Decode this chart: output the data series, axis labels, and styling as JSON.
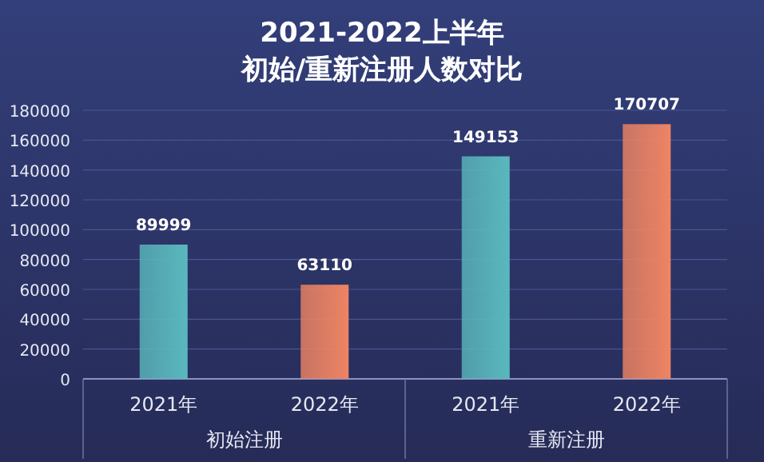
{
  "chart_data": {
    "type": "bar",
    "title": "2021-2022上半年",
    "subtitle": "初始/重新注册人数对比",
    "categories": [
      "2021年",
      "2022年",
      "2021年",
      "2022年"
    ],
    "values": [
      89999,
      63110,
      149153,
      170707
    ],
    "colors": [
      "#5ab8bd",
      "#ee8463",
      "#5ab8bd",
      "#ee8463"
    ],
    "ylim": [
      0,
      180000
    ],
    "yticks": [
      0,
      20000,
      40000,
      60000,
      80000,
      100000,
      120000,
      140000,
      160000,
      180000
    ],
    "grid": "y",
    "data_labels": true,
    "annotations": [
      "初始注册",
      "重新注册"
    ]
  }
}
